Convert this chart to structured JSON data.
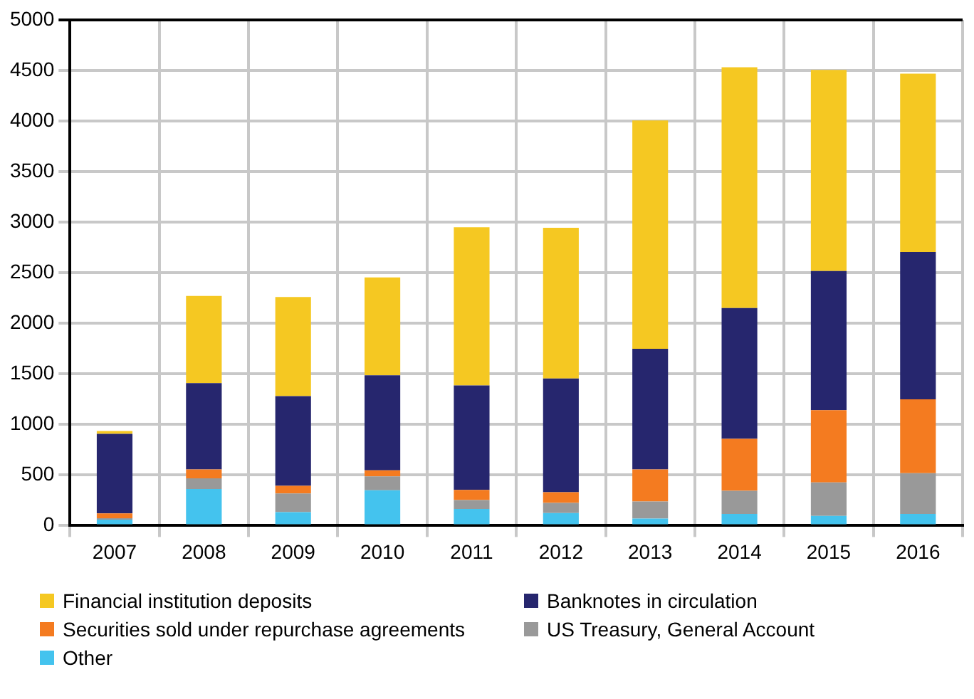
{
  "chart_data": {
    "type": "bar",
    "stacked": true,
    "categories": [
      "2007",
      "2008",
      "2009",
      "2010",
      "2011",
      "2012",
      "2013",
      "2014",
      "2015",
      "2016"
    ],
    "series": [
      {
        "name": "Other",
        "color": "#44c3ee",
        "values": [
          60,
          362,
          133,
          349,
          165,
          124,
          69,
          115,
          96,
          115
        ]
      },
      {
        "name": "US Treasury, General Account",
        "color": "#999999",
        "values": [
          13,
          106,
          184,
          137,
          87,
          101,
          170,
          229,
          331,
          403
        ]
      },
      {
        "name": "Securities sold under repurchase agreements",
        "color": "#f47b20",
        "values": [
          47,
          87,
          77,
          60,
          101,
          105,
          316,
          514,
          715,
          730
        ]
      },
      {
        "name": "Banknotes in circulation",
        "color": "#26266e",
        "values": [
          788,
          853,
          886,
          940,
          1032,
          1124,
          1193,
          1293,
          1376,
          1458
        ]
      },
      {
        "name": "Financial institution deposits",
        "color": "#f5c822",
        "values": [
          28,
          863,
          981,
          968,
          1565,
          1491,
          2257,
          2381,
          1987,
          1762
        ]
      }
    ],
    "ylim": [
      0,
      5000
    ],
    "yticks": [
      0,
      500,
      1000,
      1500,
      2000,
      2500,
      3000,
      3500,
      4000,
      4500,
      5000
    ],
    "grid": true,
    "legend": "bottom"
  }
}
